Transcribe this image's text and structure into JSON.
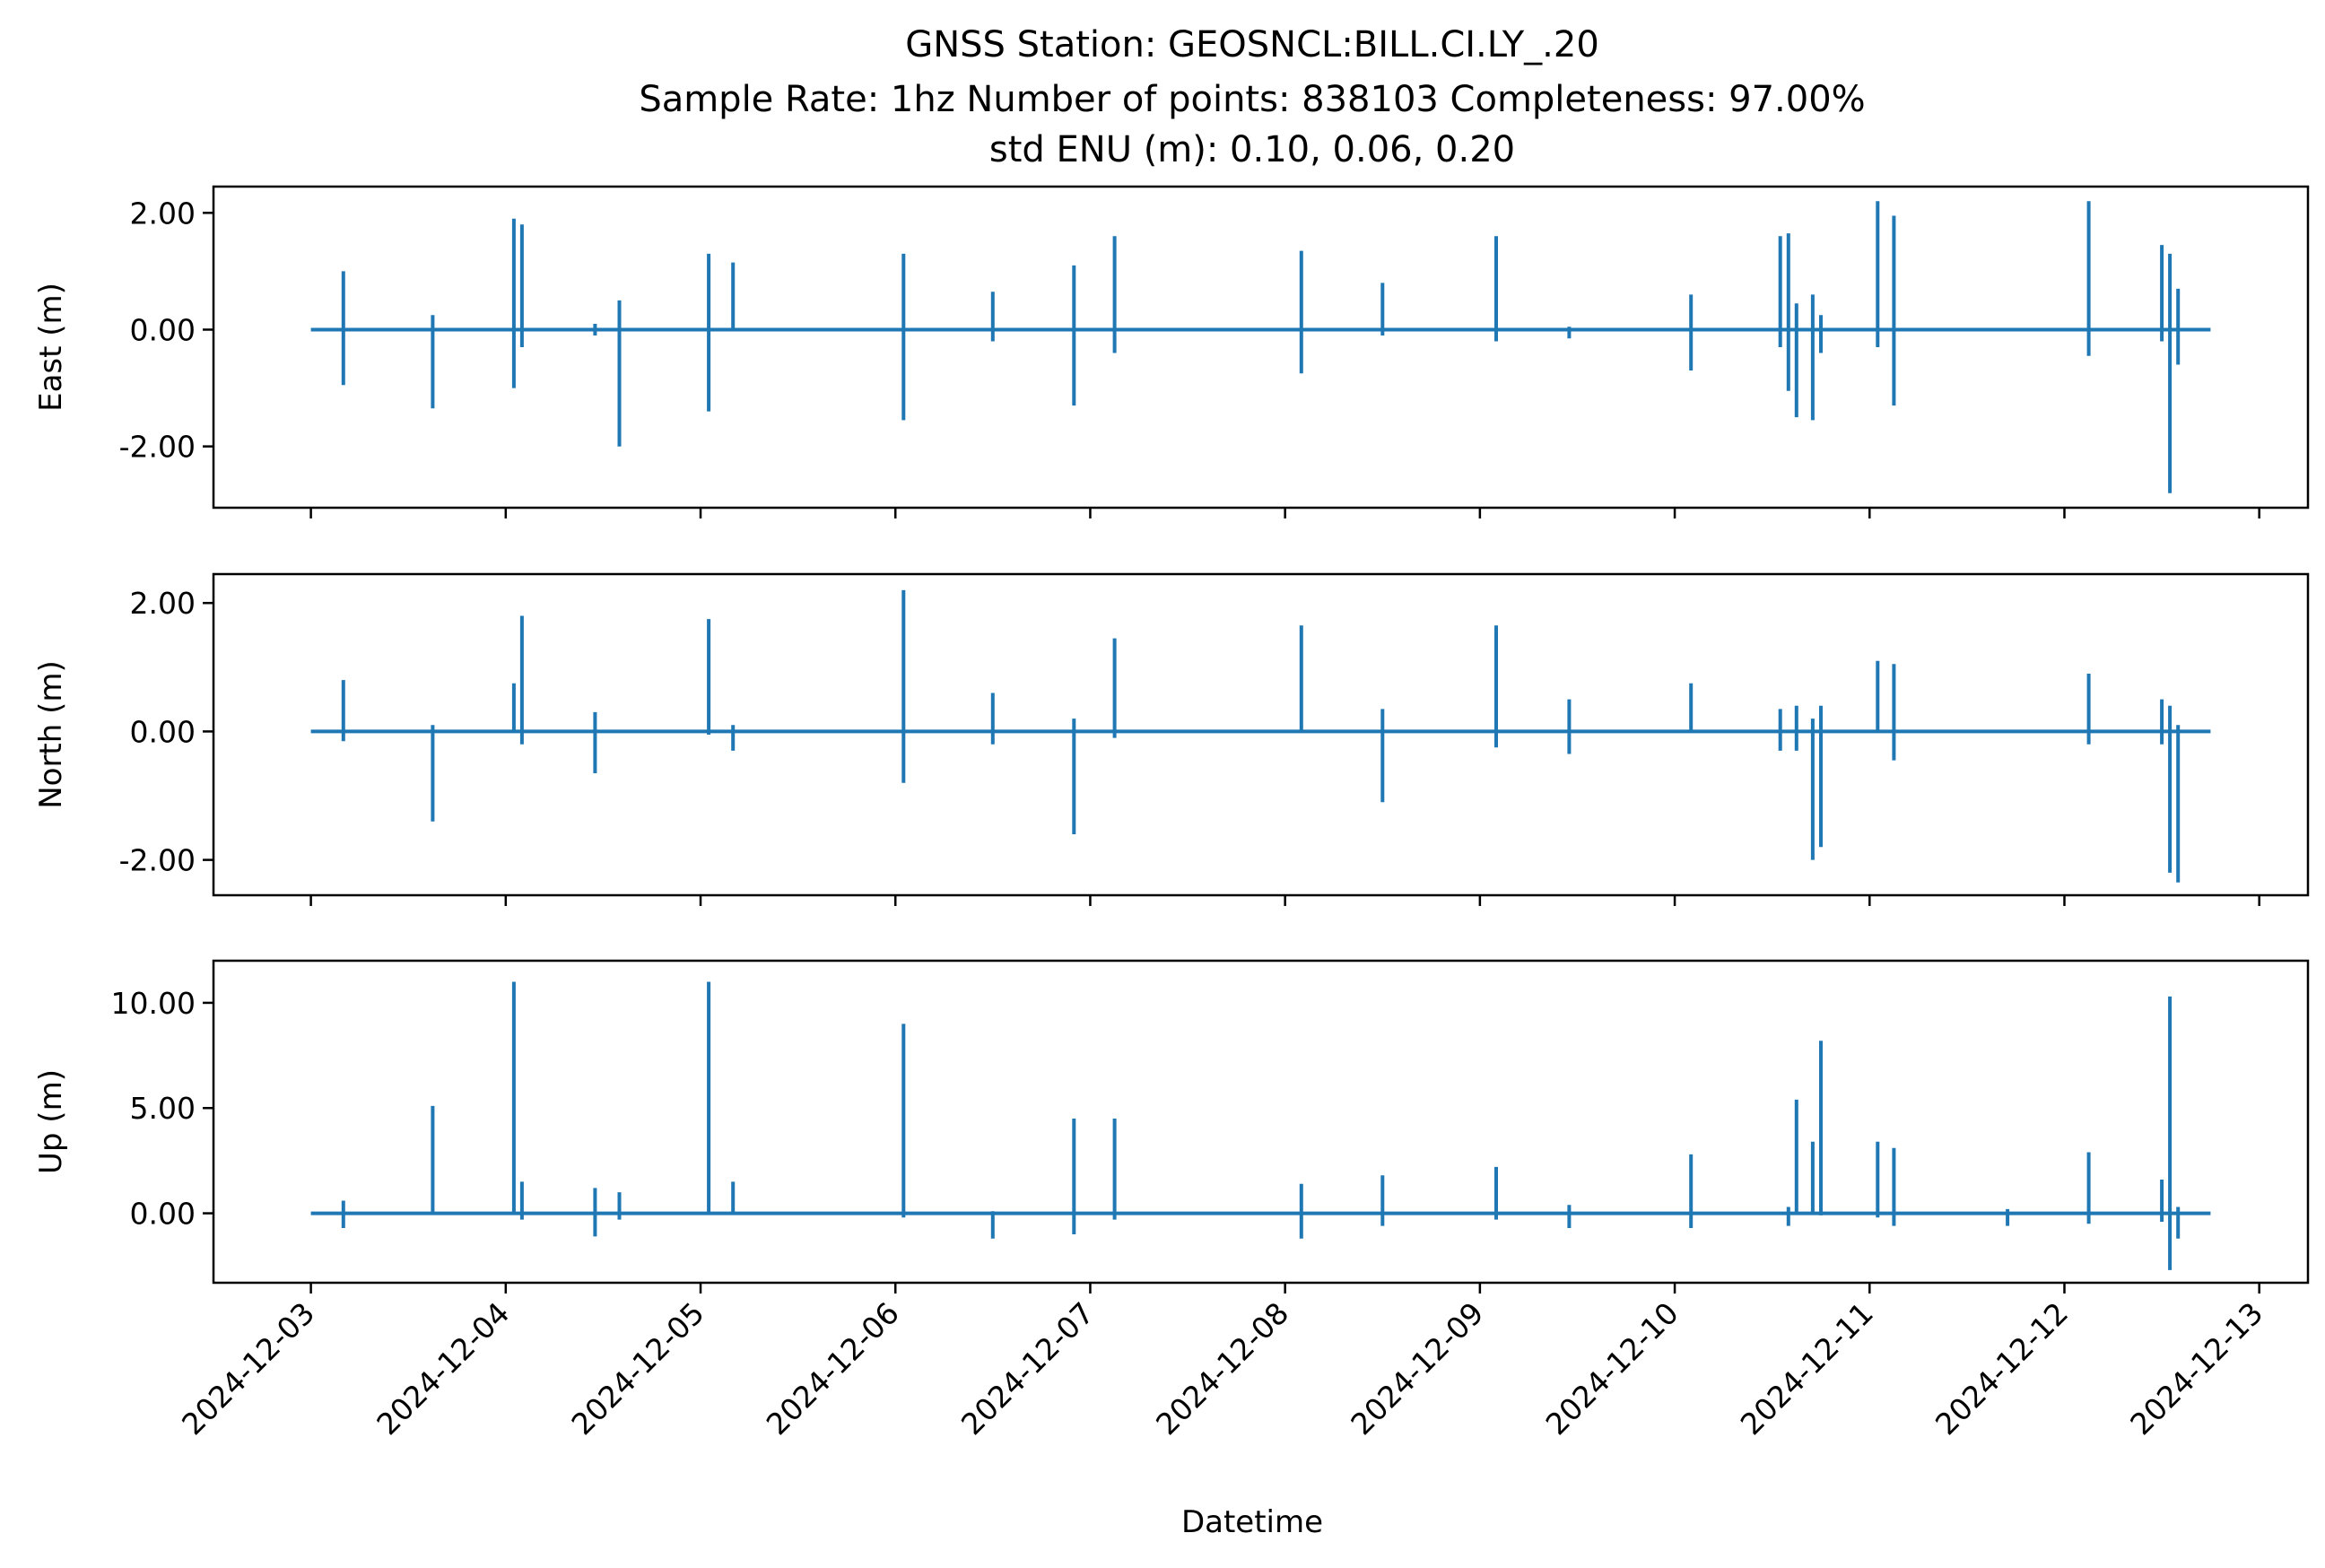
{
  "chart_data": {
    "type": "line",
    "title_lines": [
      "GNSS Station: GEOSNCL:BILL.CI.LY_.20",
      "Sample Rate: 1hz   Number of points: 838103    Completeness:  97.00%",
      "std ENU (m):  0.10, 0.06, 0.20"
    ],
    "xlabel": "Datetime",
    "x_ticks": [
      "2024-12-03",
      "2024-12-04",
      "2024-12-05",
      "2024-12-06",
      "2024-12-07",
      "2024-12-08",
      "2024-12-09",
      "2024-12-10",
      "2024-12-11",
      "2024-12-12",
      "2024-12-13"
    ],
    "x_range": [
      "2024-12-02 12:00",
      "2024-12-13 06:00"
    ],
    "x_data_range": [
      "2024-12-03 00:00",
      "2024-12-12 18:00"
    ],
    "line_color": "#1f77b4",
    "grid": false,
    "panels": [
      {
        "ylabel": "East (m)",
        "ylim": [
          -3.05,
          2.45
        ],
        "y_ticks": [
          -2.0,
          0.0,
          2.0
        ],
        "y_tick_labels": [
          "-2.00",
          "0.00",
          "2.00"
        ],
        "spikes": [
          {
            "x": "2024-12-03 04:00",
            "max": 1.0,
            "min": -0.95
          },
          {
            "x": "2024-12-03 15:00",
            "max": 0.25,
            "min": -1.35
          },
          {
            "x": "2024-12-04 01:00",
            "max": 1.9,
            "min": -1.0
          },
          {
            "x": "2024-12-04 02:00",
            "max": 1.8,
            "min": -0.3
          },
          {
            "x": "2024-12-04 11:00",
            "max": 0.1,
            "min": -0.1
          },
          {
            "x": "2024-12-04 14:00",
            "max": 0.5,
            "min": -2.0
          },
          {
            "x": "2024-12-05 01:00",
            "max": 1.3,
            "min": -1.4
          },
          {
            "x": "2024-12-05 04:00",
            "max": 1.15,
            "min": 0.0
          },
          {
            "x": "2024-12-06 01:00",
            "max": 1.3,
            "min": -1.55
          },
          {
            "x": "2024-12-06 12:00",
            "max": 0.65,
            "min": -0.2
          },
          {
            "x": "2024-12-06 22:00",
            "max": 1.1,
            "min": -1.3
          },
          {
            "x": "2024-12-07 03:00",
            "max": 1.6,
            "min": -0.4
          },
          {
            "x": "2024-12-08 02:00",
            "max": 1.35,
            "min": -0.75
          },
          {
            "x": "2024-12-08 12:00",
            "max": 0.8,
            "min": -0.1
          },
          {
            "x": "2024-12-09 02:00",
            "max": 1.6,
            "min": -0.2
          },
          {
            "x": "2024-12-09 11:00",
            "max": 0.05,
            "min": -0.15
          },
          {
            "x": "2024-12-10 02:00",
            "max": 0.6,
            "min": -0.7
          },
          {
            "x": "2024-12-10 13:00",
            "max": 1.6,
            "min": -0.3
          },
          {
            "x": "2024-12-10 14:00",
            "max": 1.65,
            "min": -1.05
          },
          {
            "x": "2024-12-10 15:00",
            "max": 0.45,
            "min": -1.5
          },
          {
            "x": "2024-12-10 17:00",
            "max": 0.6,
            "min": -1.55
          },
          {
            "x": "2024-12-10 18:00",
            "max": 0.25,
            "min": -0.4
          },
          {
            "x": "2024-12-11 01:00",
            "max": 2.2,
            "min": -0.3
          },
          {
            "x": "2024-12-11 03:00",
            "max": 1.95,
            "min": -1.3
          },
          {
            "x": "2024-12-12 03:00",
            "max": 2.2,
            "min": -0.45
          },
          {
            "x": "2024-12-12 12:00",
            "max": 1.45,
            "min": -0.2
          },
          {
            "x": "2024-12-12 13:00",
            "max": 1.3,
            "min": -2.8
          },
          {
            "x": "2024-12-12 14:00",
            "max": 0.7,
            "min": -0.6
          }
        ]
      },
      {
        "ylabel": "North (m)",
        "ylim": [
          -2.55,
          2.45
        ],
        "y_ticks": [
          -2.0,
          0.0,
          2.0
        ],
        "y_tick_labels": [
          "-2.00",
          "0.00",
          "2.00"
        ],
        "spikes": [
          {
            "x": "2024-12-03 04:00",
            "max": 0.8,
            "min": -0.15
          },
          {
            "x": "2024-12-03 15:00",
            "max": 0.1,
            "min": -1.4
          },
          {
            "x": "2024-12-04 01:00",
            "max": 0.75,
            "min": 0.0
          },
          {
            "x": "2024-12-04 02:00",
            "max": 1.8,
            "min": -0.2
          },
          {
            "x": "2024-12-04 11:00",
            "max": 0.3,
            "min": -0.65
          },
          {
            "x": "2024-12-05 01:00",
            "max": 1.75,
            "min": -0.05
          },
          {
            "x": "2024-12-05 04:00",
            "max": 0.1,
            "min": -0.3
          },
          {
            "x": "2024-12-06 01:00",
            "max": 2.2,
            "min": -0.8
          },
          {
            "x": "2024-12-06 12:00",
            "max": 0.6,
            "min": -0.2
          },
          {
            "x": "2024-12-06 22:00",
            "max": 0.2,
            "min": -1.6
          },
          {
            "x": "2024-12-07 03:00",
            "max": 1.45,
            "min": -0.1
          },
          {
            "x": "2024-12-08 02:00",
            "max": 1.65,
            "min": 0.0
          },
          {
            "x": "2024-12-08 12:00",
            "max": 0.35,
            "min": -1.1
          },
          {
            "x": "2024-12-09 02:00",
            "max": 1.65,
            "min": -0.25
          },
          {
            "x": "2024-12-09 11:00",
            "max": 0.5,
            "min": -0.35
          },
          {
            "x": "2024-12-10 02:00",
            "max": 0.75,
            "min": 0.0
          },
          {
            "x": "2024-12-10 13:00",
            "max": 0.35,
            "min": -0.3
          },
          {
            "x": "2024-12-10 15:00",
            "max": 0.4,
            "min": -0.3
          },
          {
            "x": "2024-12-10 17:00",
            "max": 0.2,
            "min": -2.0
          },
          {
            "x": "2024-12-10 18:00",
            "max": 0.4,
            "min": -1.8
          },
          {
            "x": "2024-12-11 01:00",
            "max": 1.1,
            "min": 0.0
          },
          {
            "x": "2024-12-11 03:00",
            "max": 1.05,
            "min": -0.45
          },
          {
            "x": "2024-12-12 03:00",
            "max": 0.9,
            "min": -0.2
          },
          {
            "x": "2024-12-12 12:00",
            "max": 0.5,
            "min": -0.2
          },
          {
            "x": "2024-12-12 13:00",
            "max": 0.4,
            "min": -2.2
          },
          {
            "x": "2024-12-12 14:00",
            "max": 0.1,
            "min": -2.35
          }
        ]
      },
      {
        "ylabel": "Up (m)",
        "ylim": [
          -3.3,
          12.0
        ],
        "y_ticks": [
          0.0,
          5.0,
          10.0
        ],
        "y_tick_labels": [
          "0.00",
          "5.00",
          "10.00"
        ],
        "spikes": [
          {
            "x": "2024-12-03 04:00",
            "max": 0.6,
            "min": -0.7
          },
          {
            "x": "2024-12-03 15:00",
            "max": 5.1,
            "min": 0.0
          },
          {
            "x": "2024-12-04 01:00",
            "max": 11.0,
            "min": 0.0
          },
          {
            "x": "2024-12-04 02:00",
            "max": 1.5,
            "min": -0.3
          },
          {
            "x": "2024-12-04 11:00",
            "max": 1.2,
            "min": -1.1
          },
          {
            "x": "2024-12-04 14:00",
            "max": 1.0,
            "min": -0.3
          },
          {
            "x": "2024-12-05 01:00",
            "max": 11.0,
            "min": 0.0
          },
          {
            "x": "2024-12-05 04:00",
            "max": 1.5,
            "min": 0.0
          },
          {
            "x": "2024-12-06 01:00",
            "max": 9.0,
            "min": -0.2
          },
          {
            "x": "2024-12-06 12:00",
            "max": 0.1,
            "min": -1.2
          },
          {
            "x": "2024-12-06 22:00",
            "max": 4.5,
            "min": -1.0
          },
          {
            "x": "2024-12-07 03:00",
            "max": 4.5,
            "min": -0.3
          },
          {
            "x": "2024-12-08 02:00",
            "max": 1.4,
            "min": -1.2
          },
          {
            "x": "2024-12-08 12:00",
            "max": 1.8,
            "min": -0.6
          },
          {
            "x": "2024-12-09 02:00",
            "max": 2.2,
            "min": -0.3
          },
          {
            "x": "2024-12-09 11:00",
            "max": 0.4,
            "min": -0.7
          },
          {
            "x": "2024-12-10 02:00",
            "max": 2.8,
            "min": -0.7
          },
          {
            "x": "2024-12-10 14:00",
            "max": 0.3,
            "min": -0.6
          },
          {
            "x": "2024-12-10 15:00",
            "max": 5.4,
            "min": 0.0
          },
          {
            "x": "2024-12-10 17:00",
            "max": 3.4,
            "min": 0.0
          },
          {
            "x": "2024-12-10 18:00",
            "max": 8.2,
            "min": -0.1
          },
          {
            "x": "2024-12-11 01:00",
            "max": 3.4,
            "min": -0.2
          },
          {
            "x": "2024-12-11 03:00",
            "max": 3.1,
            "min": -0.6
          },
          {
            "x": "2024-12-11 17:00",
            "max": 0.2,
            "min": -0.6
          },
          {
            "x": "2024-12-12 03:00",
            "max": 2.9,
            "min": -0.5
          },
          {
            "x": "2024-12-12 12:00",
            "max": 1.6,
            "min": -0.4
          },
          {
            "x": "2024-12-12 13:00",
            "max": 10.3,
            "min": -2.7
          },
          {
            "x": "2024-12-12 14:00",
            "max": 0.3,
            "min": -1.2
          }
        ]
      }
    ]
  }
}
